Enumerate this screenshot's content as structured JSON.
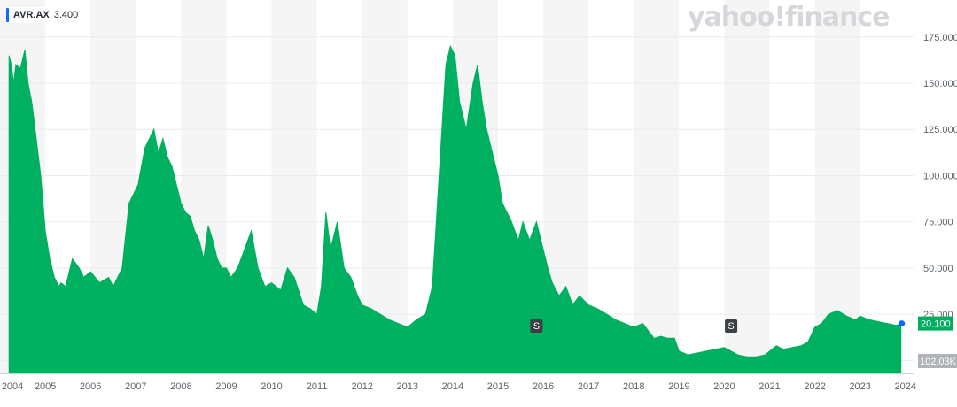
{
  "legend": {
    "symbol": "AVR.AX",
    "value": "3.400"
  },
  "watermark": "yahoo!finance",
  "colors": {
    "area": "#00b061",
    "band": "#f5f5f5",
    "last_price_bg": "#00b061",
    "volume_bg": "#b0b3b8",
    "marker": "#0f69ff",
    "split": "#3a3f44"
  },
  "chart_data": {
    "type": "area",
    "title": "",
    "xlabel": "",
    "ylabel": "",
    "ylim": [
      -7,
      195
    ],
    "y_ticks": [
      "175.000",
      "150.000",
      "125.000",
      "100.000",
      "75.000",
      "50.000",
      "25.000",
      "0.000"
    ],
    "y_tick_values": [
      175,
      150,
      125,
      100,
      75,
      50,
      25,
      0
    ],
    "x_ticks": [
      "2004",
      "2005",
      "2006",
      "2007",
      "2008",
      "2009",
      "2010",
      "2011",
      "2012",
      "2013",
      "2014",
      "2015",
      "2016",
      "2017",
      "2018",
      "2019",
      "2020",
      "2021",
      "2022",
      "2023",
      "2024"
    ],
    "xlim": [
      2004.0,
      2024.2
    ],
    "grid": true,
    "series": [
      {
        "x": [
          2004.2,
          2004.25,
          2004.3,
          2004.35,
          2004.45,
          2004.55,
          2004.62,
          2004.7,
          2004.8,
          2004.9,
          2005.0,
          2005.1,
          2005.2,
          2005.3,
          2005.35,
          2005.45,
          2005.6,
          2005.75,
          2005.85,
          2006.0,
          2006.2,
          2006.4,
          2006.5,
          2006.7,
          2006.85,
          2006.95,
          2007.05,
          2007.2,
          2007.3,
          2007.4,
          2007.5,
          2007.6,
          2007.7,
          2007.8,
          2007.9,
          2008.0,
          2008.1,
          2008.2,
          2008.3,
          2008.4,
          2008.5,
          2008.6,
          2008.7,
          2008.8,
          2008.9,
          2009.0,
          2009.1,
          2009.25,
          2009.4,
          2009.55,
          2009.7,
          2009.85,
          2010.0,
          2010.1,
          2010.2,
          2010.35,
          2010.5,
          2010.7,
          2010.85,
          2011.0,
          2011.1,
          2011.2,
          2011.3,
          2011.45,
          2011.6,
          2011.75,
          2011.9,
          2012.0,
          2012.2,
          2012.4,
          2012.6,
          2012.8,
          2013.0,
          2013.2,
          2013.4,
          2013.55,
          2013.65,
          2013.75,
          2013.85,
          2013.95,
          2014.05,
          2014.15,
          2014.3,
          2014.45,
          2014.55,
          2014.65,
          2014.75,
          2014.85,
          2015.0,
          2015.1,
          2015.2,
          2015.3,
          2015.45,
          2015.55,
          2015.7,
          2015.85,
          2016.0,
          2016.1,
          2016.2,
          2016.35,
          2016.5,
          2016.65,
          2016.8,
          2017.0,
          2017.2,
          2017.4,
          2017.6,
          2017.8,
          2018.0,
          2018.2,
          2018.35,
          2018.45,
          2018.6,
          2018.75,
          2018.9,
          2019.0,
          2019.2,
          2019.4,
          2019.6,
          2019.8,
          2020.0,
          2020.15,
          2020.3,
          2020.5,
          2020.7,
          2020.9,
          2021.0,
          2021.15,
          2021.3,
          2021.5,
          2021.7,
          2021.85,
          2022.0,
          2022.15,
          2022.3,
          2022.5,
          2022.7,
          2022.9,
          2023.0,
          2023.2,
          2023.4,
          2023.6,
          2023.8,
          2023.9
        ],
        "y": [
          165,
          160,
          150,
          160,
          158,
          168,
          150,
          140,
          120,
          100,
          70,
          55,
          45,
          40,
          42,
          40,
          55,
          50,
          45,
          48,
          42,
          45,
          40,
          50,
          85,
          90,
          95,
          115,
          120,
          125,
          112,
          120,
          110,
          105,
          95,
          85,
          80,
          78,
          70,
          65,
          55,
          73,
          65,
          55,
          50,
          50,
          45,
          50,
          60,
          70,
          50,
          40,
          42,
          40,
          38,
          50,
          45,
          30,
          28,
          25,
          40,
          80,
          60,
          75,
          50,
          45,
          35,
          30,
          28,
          25,
          22,
          20,
          18,
          22,
          25,
          40,
          80,
          120,
          160,
          170,
          165,
          140,
          125,
          150,
          160,
          140,
          125,
          115,
          100,
          85,
          80,
          75,
          65,
          75,
          65,
          75,
          60,
          50,
          42,
          35,
          40,
          30,
          35,
          30,
          28,
          25,
          22,
          20,
          18,
          20,
          15,
          12,
          13,
          12,
          12,
          5,
          3,
          4,
          5,
          6,
          7,
          5,
          3,
          2,
          2,
          3,
          5,
          8,
          6,
          7,
          8,
          10,
          18,
          20,
          25,
          27,
          24,
          22,
          24,
          22,
          21,
          20,
          19,
          20
        ]
      }
    ],
    "volume_label": "102.03K",
    "last_price": "20.100",
    "last_price_value": 20.1,
    "split_markers": [
      {
        "label": "S",
        "x": 2015.85
      },
      {
        "label": "S",
        "x": 2020.15
      }
    ]
  }
}
